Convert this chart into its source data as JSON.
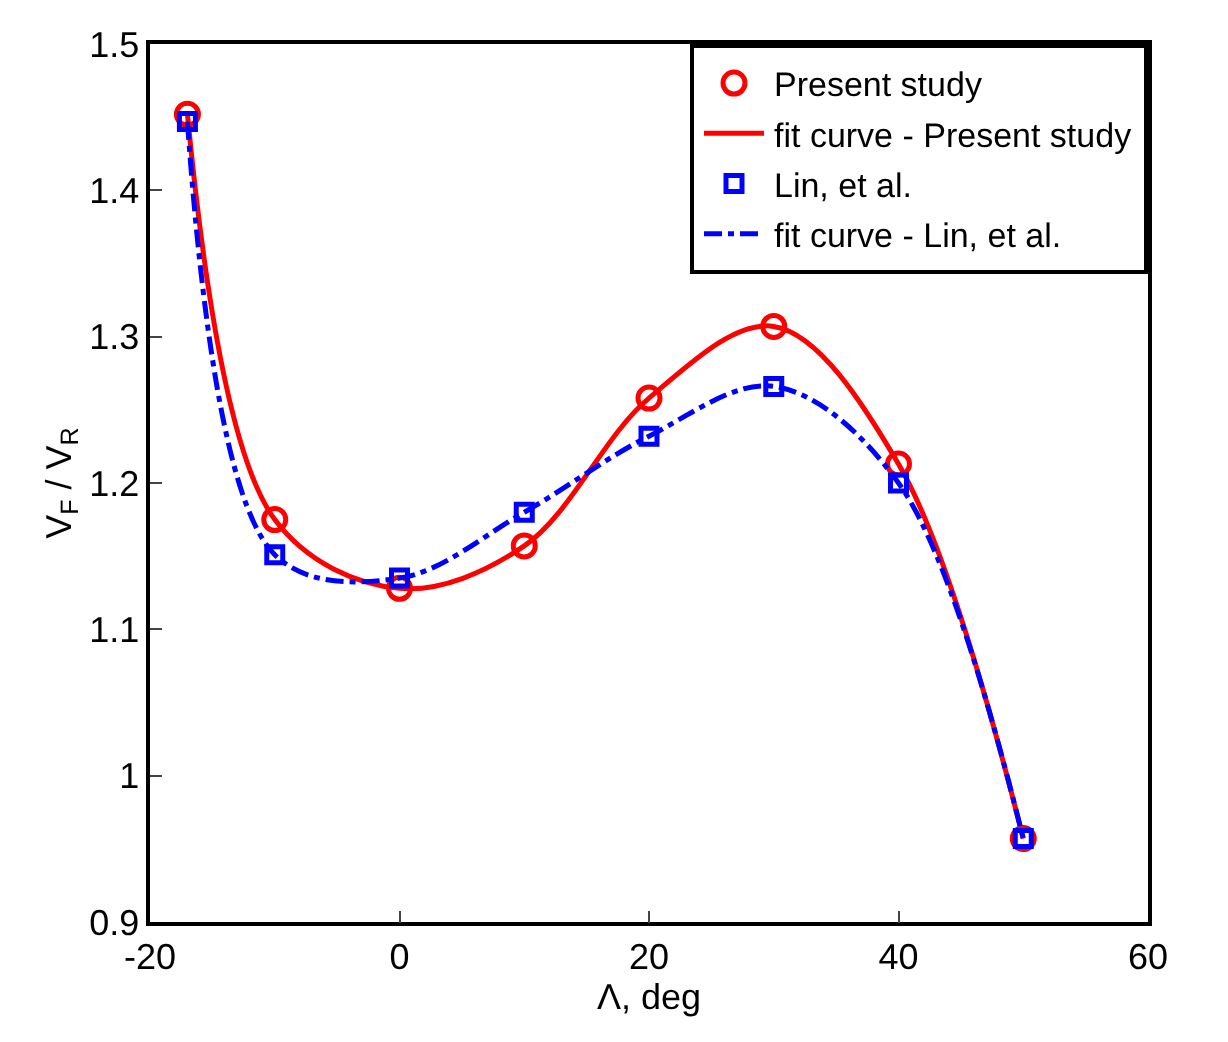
{
  "chart_data": {
    "type": "scatter",
    "xlabel": "Λ, deg",
    "ylabel": "V$_{F}$ / V$_{R}$",
    "xlim": [
      -20,
      60
    ],
    "xticks": [
      -20,
      0,
      20,
      40,
      60
    ],
    "ylim": [
      0.9,
      1.5
    ],
    "yticks": [
      0.9,
      1,
      1.1,
      1.2,
      1.3,
      1.4,
      1.5
    ],
    "legend": "top right",
    "series": [
      {
        "name": "Present study",
        "marker": "circle",
        "color": "#ff0000",
        "x": [
          -17,
          -10,
          0,
          10,
          20,
          30,
          40,
          50
        ],
        "values": [
          1.452,
          1.175,
          1.128,
          1.157,
          1.258,
          1.307,
          1.213,
          0.957
        ]
      },
      {
        "name": "fit curve - Present study",
        "type": "line",
        "marker": "none",
        "line_style": "solid",
        "color": "#ff0000",
        "x": [
          -17,
          -10,
          0,
          10,
          20,
          30,
          40,
          50
        ],
        "values": [
          1.452,
          1.175,
          1.128,
          1.157,
          1.258,
          1.307,
          1.213,
          0.957
        ]
      },
      {
        "name": "Lin, et al.",
        "marker": "square",
        "color": "#0000ff",
        "x": [
          -17,
          -10,
          0,
          10,
          20,
          30,
          40,
          50
        ],
        "values": [
          1.447,
          1.151,
          1.135,
          1.18,
          1.232,
          1.266,
          1.2,
          0.957
        ]
      },
      {
        "name": "fit curve - Lin, et al.",
        "type": "line",
        "marker": "none",
        "line_style": "dashed",
        "color": "#0000ff",
        "x": [
          -17,
          -10,
          0,
          10,
          20,
          30,
          40,
          50
        ],
        "values": [
          1.447,
          1.151,
          1.135,
          1.18,
          1.232,
          1.266,
          1.2,
          0.957
        ]
      }
    ]
  }
}
